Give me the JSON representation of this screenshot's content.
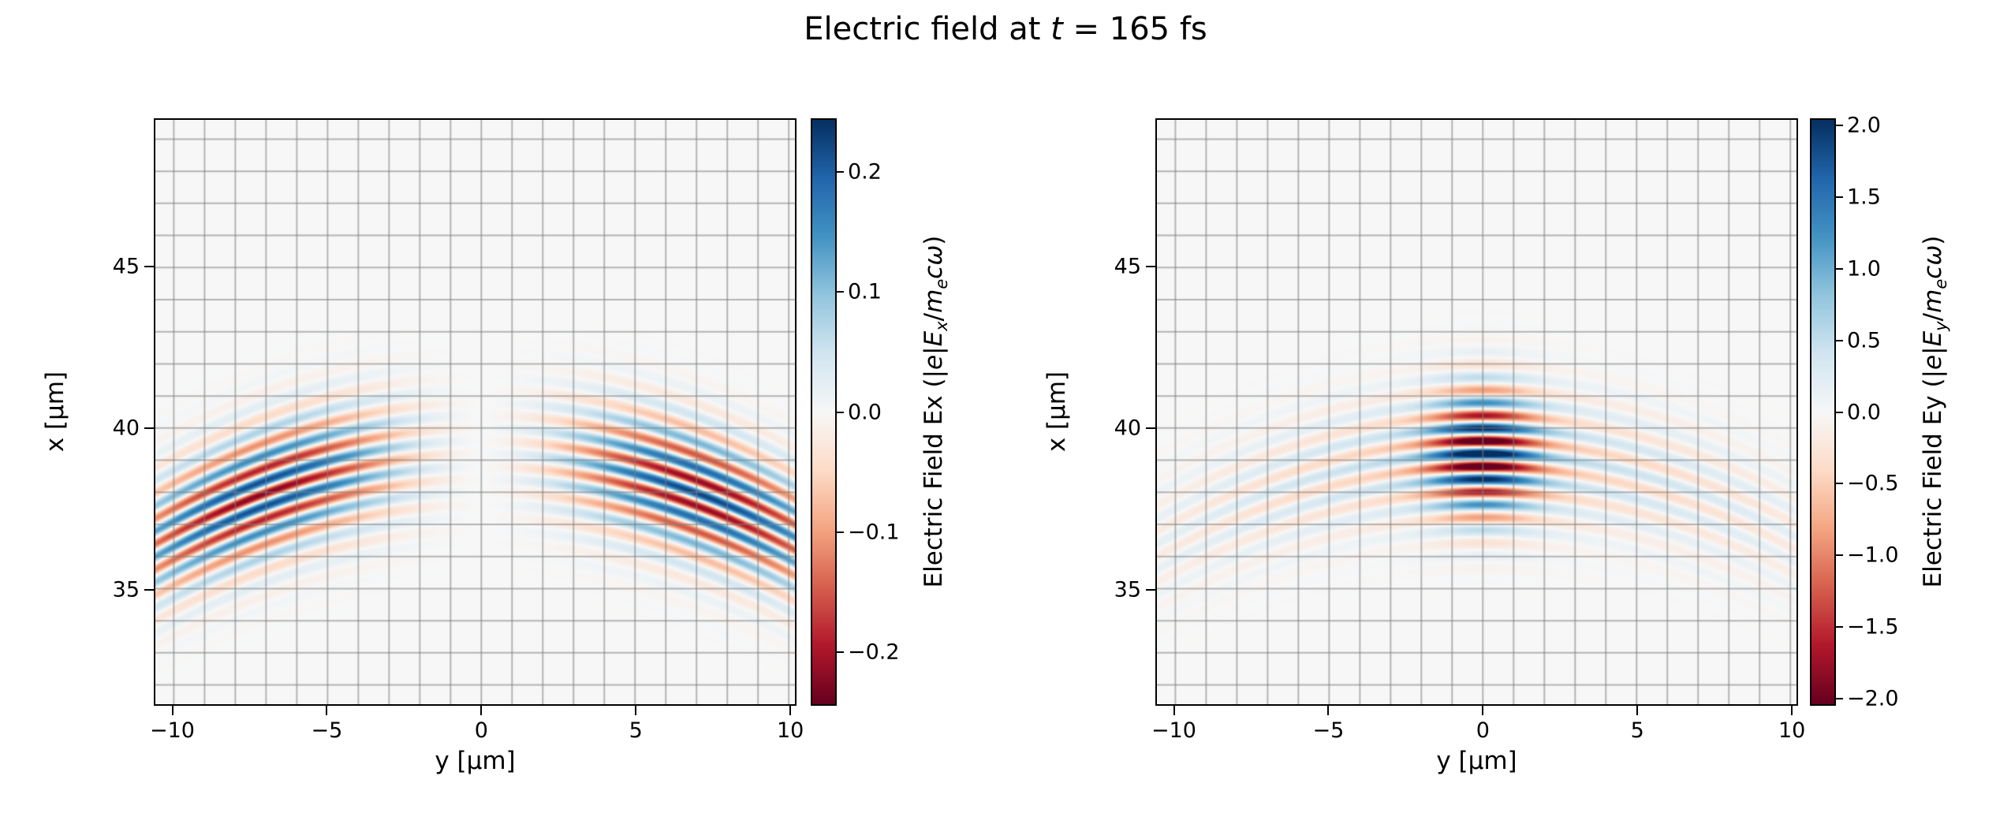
{
  "title": {
    "text": "Electric field at t = 165 fs",
    "parts": [
      {
        "t": "Electric field at ",
        "s": "n"
      },
      {
        "t": "t",
        "s": "i"
      },
      {
        "t": " = 165 fs",
        "s": "n"
      }
    ]
  },
  "colors": {
    "figure_bg": "#ffffff",
    "spine": "#000000",
    "text": "#000000",
    "grid": "rgba(125,125,125,0.55)",
    "colormap": "RdBu",
    "rdbu_stops": [
      "#67001f",
      "#b2182b",
      "#d6604d",
      "#f4a582",
      "#fddbc7",
      "#f7f7f7",
      "#d1e5f0",
      "#92c5de",
      "#4393c3",
      "#2166ac",
      "#053061"
    ]
  },
  "chart_data": [
    {
      "type": "heatmap",
      "name": "Ex",
      "xlabel": "y [μm]",
      "ylabel": "x [μm]",
      "x_range": [
        -10.6,
        10.2
      ],
      "y_range": [
        31.4,
        49.6
      ],
      "x_ticks": [
        {
          "v": -10,
          "label": "−10"
        },
        {
          "v": -5,
          "label": "−5"
        },
        {
          "v": 0,
          "label": "0"
        },
        {
          "v": 5,
          "label": "5"
        },
        {
          "v": 10,
          "label": "10"
        }
      ],
      "y_ticks": [
        {
          "v": 35,
          "label": "35"
        },
        {
          "v": 40,
          "label": "40"
        },
        {
          "v": 45,
          "label": "45"
        }
      ],
      "grid_step": 1,
      "colorbar": {
        "vmin": -0.245,
        "vmax": 0.245,
        "ticks": [
          {
            "v": 0.2,
            "label": "0.2"
          },
          {
            "v": 0.1,
            "label": "0.1"
          },
          {
            "v": 0.0,
            "label": "0.0"
          },
          {
            "v": -0.1,
            "label": "−0.1"
          },
          {
            "v": -0.2,
            "label": "−0.2"
          }
        ],
        "label_text": "Electric Field Ex (|e|Ex/mecω)",
        "label_parts": [
          {
            "t": "Electric Field Ex (|",
            "s": "n"
          },
          {
            "t": "e",
            "s": "i"
          },
          {
            "t": "|",
            "s": "n"
          },
          {
            "t": "E",
            "s": "i"
          },
          {
            "t": "x",
            "s": "si"
          },
          {
            "t": "/",
            "s": "n"
          },
          {
            "t": "m",
            "s": "i"
          },
          {
            "t": "e",
            "s": "si"
          },
          {
            "t": "c",
            "s": "i"
          },
          {
            "t": "ω",
            "s": "i"
          },
          {
            "t": ")",
            "s": "n"
          }
        ]
      },
      "field_model": {
        "kind": "antisymmetric-lobes",
        "wavelength_um": 0.8,
        "x_center_um": 39.2,
        "wavefront_radius_um": 20,
        "sigma_x_um": 1.9,
        "amplitude": 0.23,
        "y_tanh_scale_um": 3,
        "y_peak_um": 7,
        "y_width_um": 5,
        "phase": 0
      }
    },
    {
      "type": "heatmap",
      "name": "Ey",
      "xlabel": "y [μm]",
      "ylabel": "x [μm]",
      "x_range": [
        -10.6,
        10.2
      ],
      "y_range": [
        31.4,
        49.6
      ],
      "x_ticks": [
        {
          "v": -10,
          "label": "−10"
        },
        {
          "v": -5,
          "label": "−5"
        },
        {
          "v": 0,
          "label": "0"
        },
        {
          "v": 5,
          "label": "5"
        },
        {
          "v": 10,
          "label": "10"
        }
      ],
      "y_ticks": [
        {
          "v": 35,
          "label": "35"
        },
        {
          "v": 40,
          "label": "40"
        },
        {
          "v": 45,
          "label": "45"
        }
      ],
      "grid_step": 1,
      "colorbar": {
        "vmin": -2.05,
        "vmax": 2.05,
        "ticks": [
          {
            "v": 2.0,
            "label": "2.0"
          },
          {
            "v": 1.5,
            "label": "1.5"
          },
          {
            "v": 1.0,
            "label": "1.0"
          },
          {
            "v": 0.5,
            "label": "0.5"
          },
          {
            "v": 0.0,
            "label": "0.0"
          },
          {
            "v": -0.5,
            "label": "−0.5"
          },
          {
            "v": -1.0,
            "label": "−1.0"
          },
          {
            "v": -1.5,
            "label": "−1.5"
          },
          {
            "v": -2.0,
            "label": "−2.0"
          }
        ],
        "label_text": "Electric Field Ey (|e|Ey/mecω)",
        "label_parts": [
          {
            "t": "Electric Field Ey (|",
            "s": "n"
          },
          {
            "t": "e",
            "s": "i"
          },
          {
            "t": "|",
            "s": "n"
          },
          {
            "t": "E",
            "s": "i"
          },
          {
            "t": "y",
            "s": "si"
          },
          {
            "t": "/",
            "s": "n"
          },
          {
            "t": "m",
            "s": "i"
          },
          {
            "t": "e",
            "s": "si"
          },
          {
            "t": "c",
            "s": "i"
          },
          {
            "t": "ω",
            "s": "i"
          },
          {
            "t": ")",
            "s": "n"
          }
        ]
      },
      "field_model": {
        "kind": "central-plus-wings",
        "wavelength_um": 0.8,
        "x_center_um": 39.2,
        "wavefront_radius_um": 20,
        "sigma_x_um": 1.9,
        "amp_core": 2.0,
        "w_core_um": 1.7,
        "amp_wing": 0.55,
        "w_wing_um": 10,
        "phase": 0
      }
    }
  ]
}
